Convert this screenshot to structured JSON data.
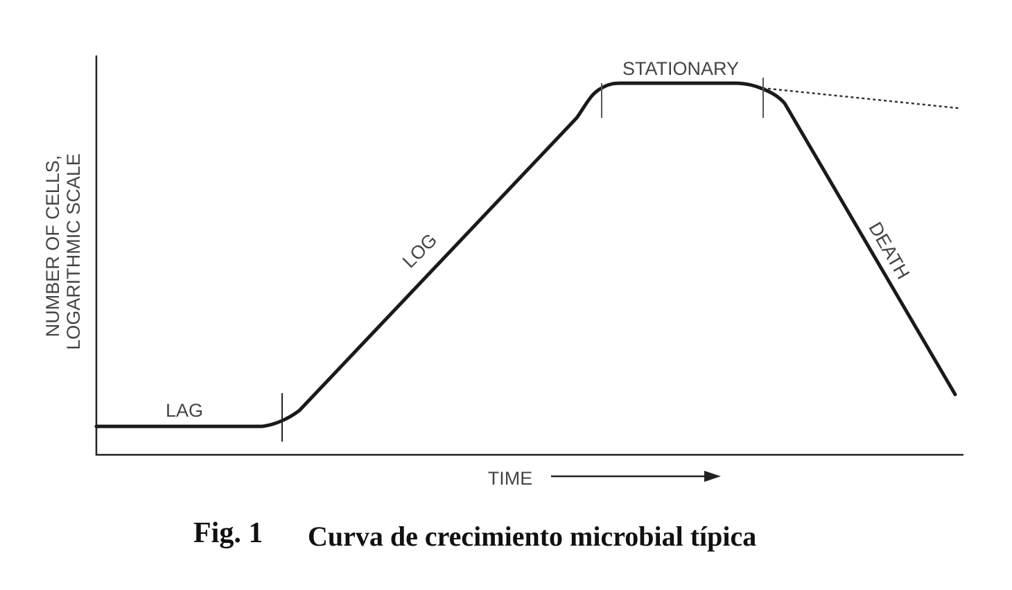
{
  "diagram": {
    "y_axis_label_line1": "NUMBER OF CELLS,",
    "y_axis_label_line2": "LOGARITHMIC SCALE",
    "x_axis_label": "TIME",
    "phase_labels": {
      "lag": "LAG",
      "log": "LOG",
      "stationary": "STATIONARY",
      "death": "DEATH"
    },
    "line_color": "#1a1a1a",
    "label_color": "#444444"
  },
  "caption": {
    "number": "Fig. 1",
    "text": "Curva de crecimiento microbial típica"
  }
}
